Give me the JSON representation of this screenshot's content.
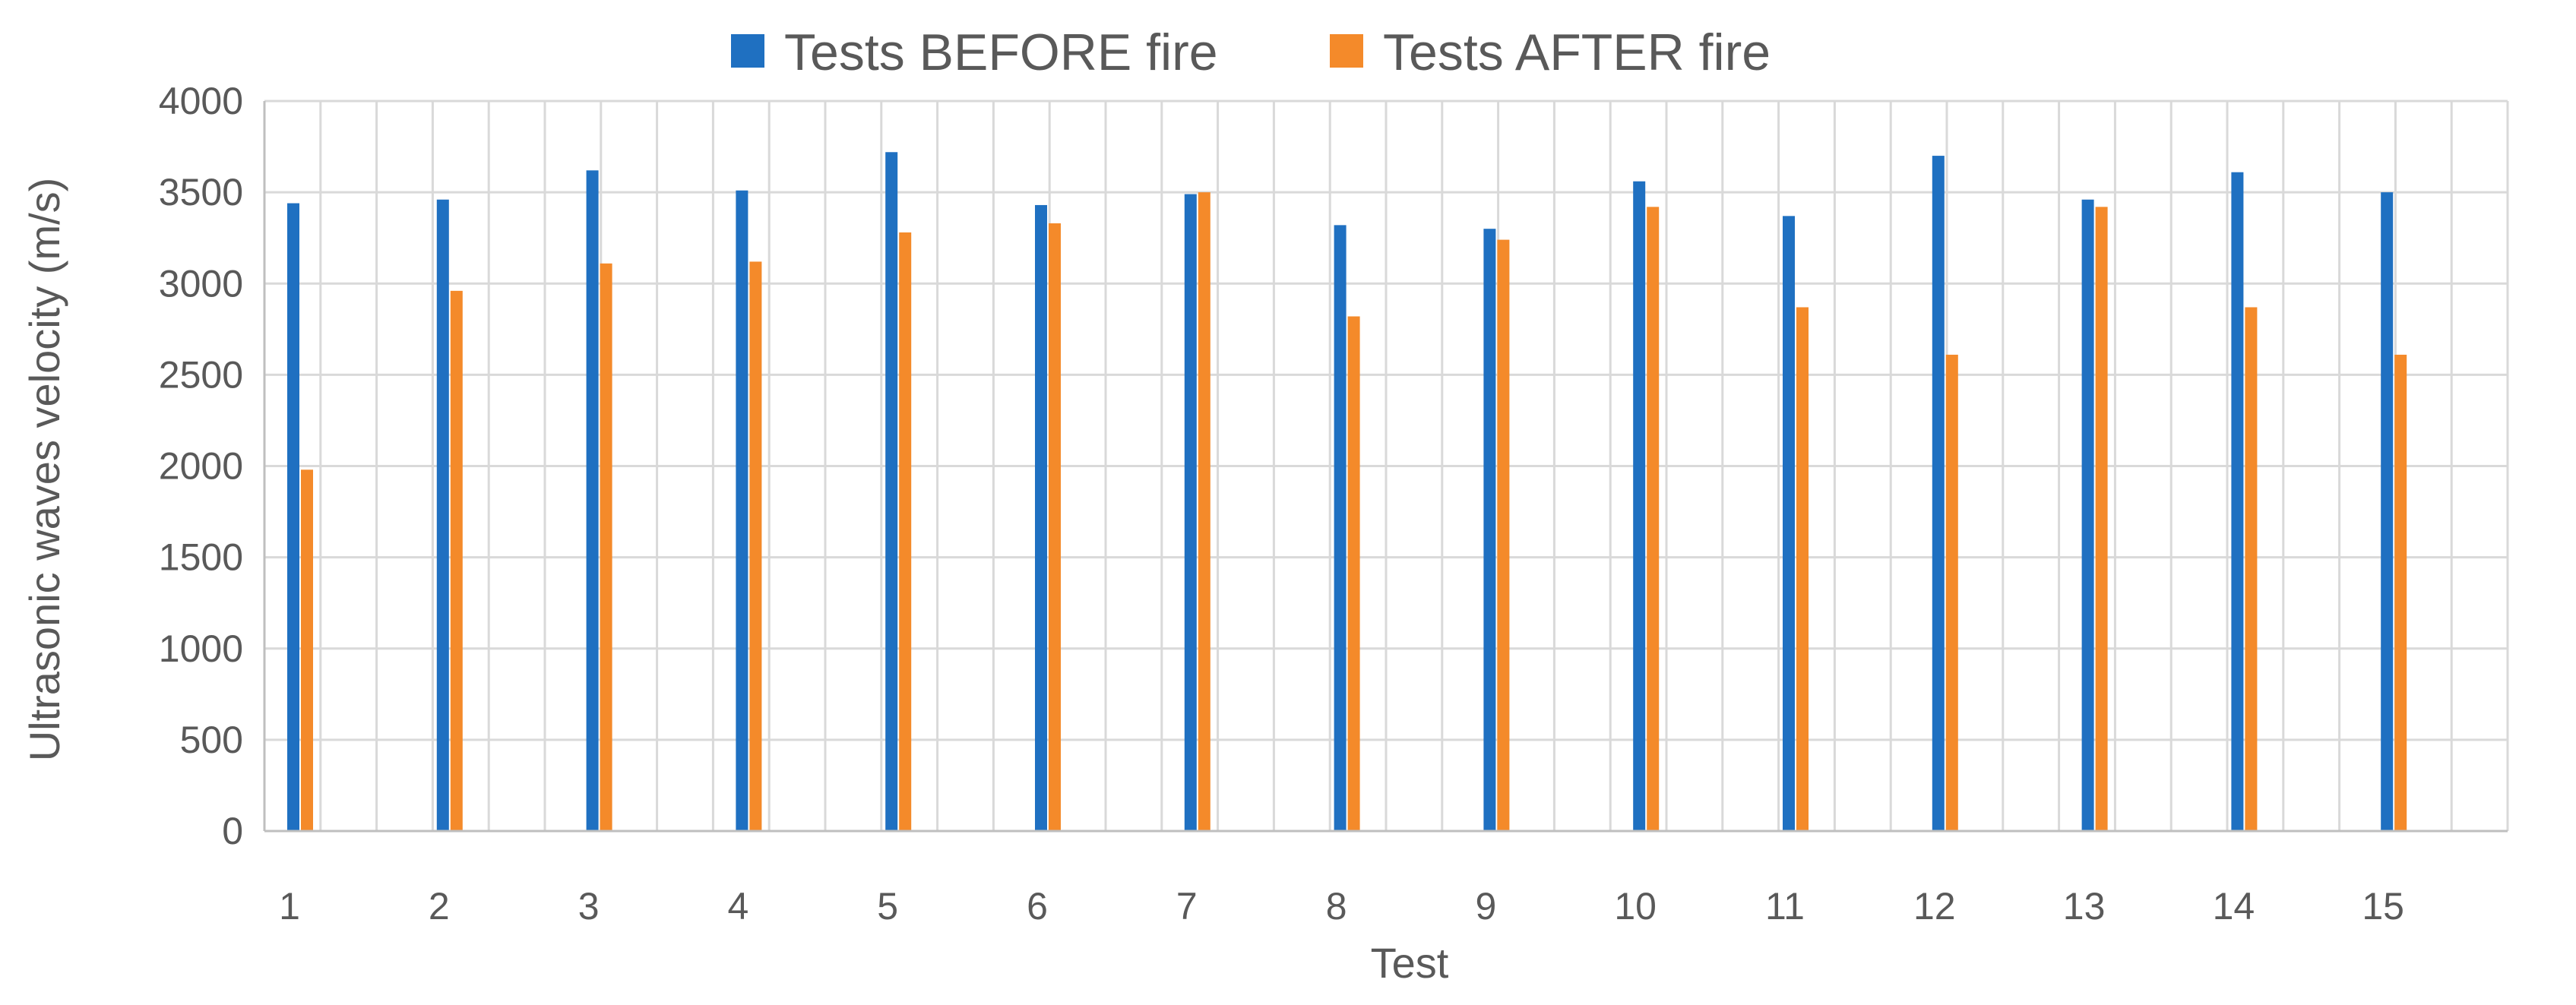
{
  "chart_data": {
    "type": "bar",
    "title": "",
    "xlabel": "Test",
    "ylabel": "Ultrasonic waves velocity (m/s)",
    "ylim": [
      0,
      4000
    ],
    "yticks": [
      0,
      500,
      1000,
      1500,
      2000,
      2500,
      3000,
      3500,
      4000
    ],
    "grid": true,
    "legend": "top-center",
    "x": [
      1,
      2,
      3,
      4,
      5,
      6,
      7,
      8,
      9,
      10,
      11,
      12,
      13,
      14,
      15
    ],
    "categories": [
      "1",
      "2",
      "3",
      "4",
      "5",
      "6",
      "7",
      "8",
      "9",
      "10",
      "11",
      "12",
      "13",
      "14",
      "15"
    ],
    "series": [
      {
        "name": "Tests BEFORE fire",
        "color": "#1f70c1",
        "values": [
          3440,
          3460,
          3620,
          3510,
          3720,
          3430,
          3490,
          3320,
          3300,
          3560,
          3370,
          3700,
          3460,
          3610,
          3500
        ]
      },
      {
        "name": "Tests AFTER fire",
        "color": "#f48a2a",
        "values": [
          1980,
          2960,
          3110,
          3120,
          3280,
          3330,
          3500,
          2820,
          3240,
          3420,
          2870,
          2610,
          3420,
          2870,
          2610
        ]
      }
    ],
    "colors": {
      "grid": "#d9d9d9",
      "axis": "#bfbfbf",
      "text": "#595959"
    }
  }
}
